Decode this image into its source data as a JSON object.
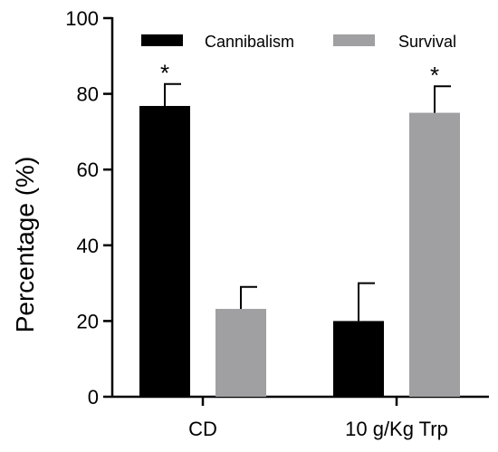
{
  "chart_data": {
    "type": "bar",
    "title": "",
    "xlabel": "",
    "ylabel": "Percentage (%)",
    "ylim": [
      0,
      100
    ],
    "yticks": [
      0,
      20,
      40,
      60,
      80,
      100
    ],
    "categories": [
      "CD",
      "10 g/Kg Trp"
    ],
    "series": [
      {
        "name": "Cannibalism",
        "color": "#000000",
        "values": [
          76.8,
          20.0
        ],
        "errors": [
          5.8,
          10.0
        ]
      },
      {
        "name": "Survival",
        "color": "#A0A0A3",
        "values": [
          23.2,
          75.0
        ],
        "errors": [
          5.8,
          7.0
        ]
      }
    ],
    "annotations": [
      {
        "text": "*",
        "category": "CD",
        "series": "Cannibalism"
      },
      {
        "text": "*",
        "category": "10 g/Kg Trp",
        "series": "Survival"
      }
    ],
    "legend": "top",
    "grid": false
  }
}
